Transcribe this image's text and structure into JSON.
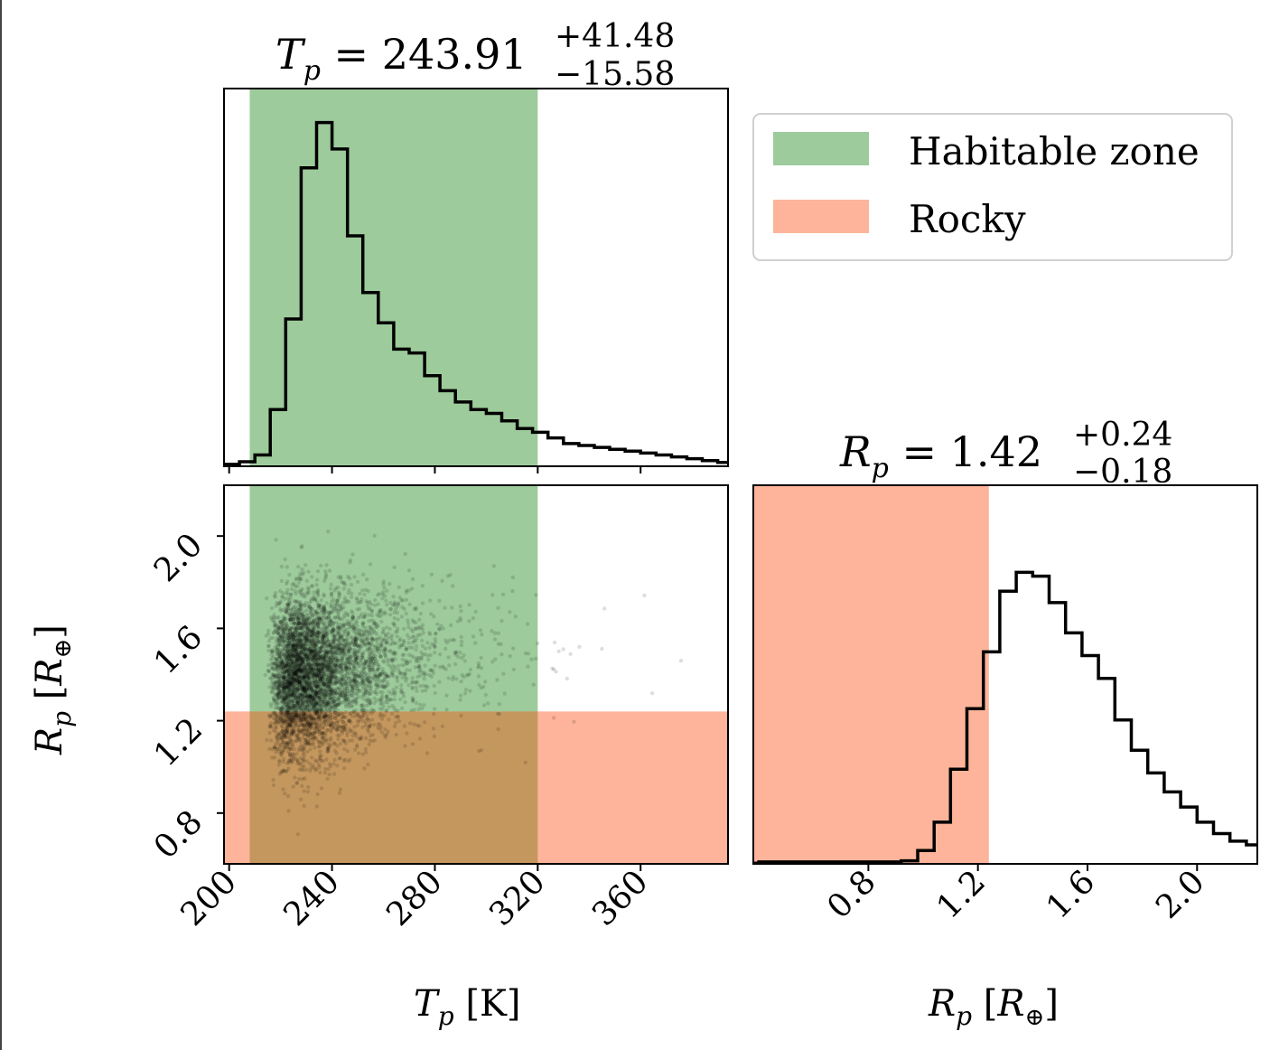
{
  "colors": {
    "habitable": "#9dcb9b",
    "rocky": "#fdb49a",
    "overlap": "#c4975e",
    "histogram": "#000000",
    "points": "#000000"
  },
  "legend": {
    "placement": "top-right",
    "entries": [
      {
        "label": "Habitable zone",
        "color": "#9dcb9b"
      },
      {
        "label": "Rocky",
        "color": "#fdb49a"
      }
    ]
  },
  "titles": {
    "tp": {
      "var": "T",
      "sub": "p",
      "eq": " = ",
      "value": "243.91",
      "sup": "+41.48",
      "low": "−15.58"
    },
    "rp": {
      "var": "R",
      "sub": "p",
      "eq": " = ",
      "value": "1.42",
      "sup": "+0.24",
      "low": "−0.18"
    }
  },
  "axis_labels": {
    "x_tp": {
      "var": "T",
      "sub": "p",
      "unit": " [K]"
    },
    "x_rp": {
      "var": "R",
      "sub": "p",
      "unit_open": " [",
      "unit_var": "R",
      "unit_sub": "⊕",
      "unit_close": "]"
    },
    "y_rp": {
      "var": "R",
      "sub": "p",
      "unit_open": " [",
      "unit_var": "R",
      "unit_sub": "⊕",
      "unit_close": "]"
    }
  },
  "chart_data": [
    {
      "type": "bar",
      "panel": "Tp histogram",
      "xlim": [
        198,
        394
      ],
      "ylim": [
        0,
        1.0
      ],
      "x_ticks": [
        200,
        240,
        280,
        320,
        360
      ],
      "habitable_range": [
        208,
        320
      ],
      "bin_edges": [
        198,
        204,
        210,
        216,
        222,
        228,
        234,
        240,
        246,
        252,
        258,
        264,
        270,
        276,
        282,
        288,
        294,
        300,
        306,
        312,
        318,
        324,
        330,
        336,
        342,
        348,
        354,
        360,
        366,
        372,
        378,
        384,
        390,
        394
      ],
      "values": [
        0.005,
        0.012,
        0.03,
        0.15,
        0.39,
        0.79,
        0.91,
        0.84,
        0.61,
        0.46,
        0.38,
        0.31,
        0.3,
        0.24,
        0.2,
        0.17,
        0.15,
        0.14,
        0.12,
        0.1,
        0.09,
        0.075,
        0.06,
        0.055,
        0.05,
        0.045,
        0.04,
        0.035,
        0.03,
        0.025,
        0.02,
        0.015,
        0.01
      ]
    },
    {
      "type": "scatter",
      "panel": "Tp vs Rp",
      "xlim": [
        198,
        394
      ],
      "ylim": [
        0.58,
        2.22
      ],
      "x_ticks": [
        200,
        240,
        280,
        320,
        360
      ],
      "y_ticks": [
        0.8,
        1.2,
        1.6,
        2.0
      ],
      "habitable_range_x": [
        208,
        320
      ],
      "rocky_range_y": [
        0.58,
        1.24
      ],
      "points_note": "dense cloud centered near Tp 232 K, Rp 1.40"
    },
    {
      "type": "bar",
      "panel": "Rp histogram",
      "xlim": [
        0.38,
        2.22
      ],
      "ylim": [
        0,
        1.0
      ],
      "x_ticks": [
        0.8,
        1.2,
        1.6,
        2.0
      ],
      "rocky_range": [
        0.38,
        1.24
      ],
      "bin_edges": [
        0.38,
        0.4,
        0.92,
        0.98,
        1.04,
        1.1,
        1.16,
        1.22,
        1.28,
        1.34,
        1.4,
        1.46,
        1.52,
        1.58,
        1.64,
        1.7,
        1.76,
        1.82,
        1.88,
        1.94,
        2.0,
        2.06,
        2.12,
        2.18,
        2.22
      ],
      "values": [
        0.002,
        0.005,
        0.008,
        0.035,
        0.11,
        0.25,
        0.41,
        0.56,
        0.72,
        0.77,
        0.76,
        0.69,
        0.61,
        0.55,
        0.49,
        0.38,
        0.3,
        0.24,
        0.19,
        0.15,
        0.11,
        0.08,
        0.06,
        0.05
      ]
    }
  ]
}
